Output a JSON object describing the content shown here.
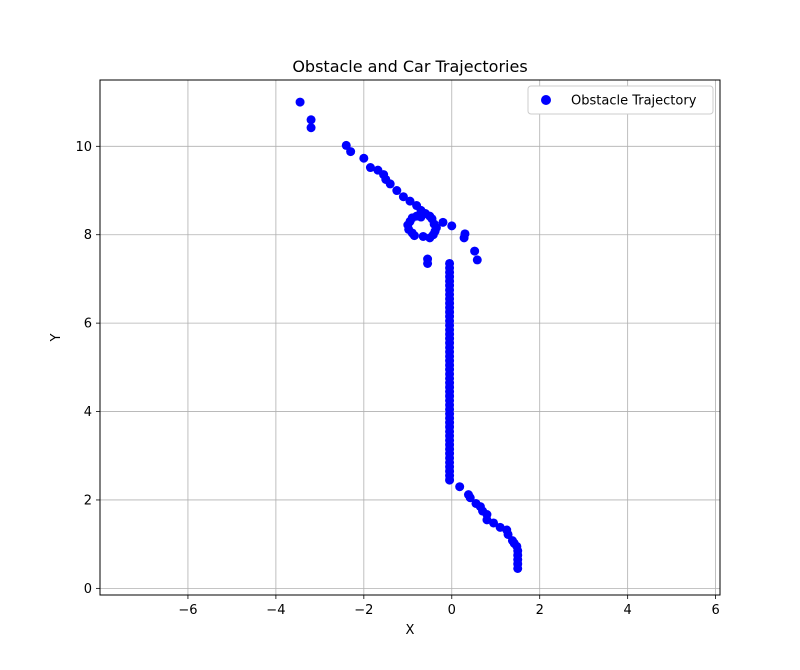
{
  "chart_data": {
    "type": "scatter",
    "title": "Obstacle and Car Trajectories",
    "xlabel": "X",
    "ylabel": "Y",
    "xlim": [
      -8.0,
      6.1
    ],
    "ylim": [
      -0.15,
      11.5
    ],
    "xticks": [
      -6,
      -4,
      -2,
      0,
      2,
      4,
      6
    ],
    "yticks": [
      0,
      2,
      4,
      6,
      8,
      10
    ],
    "xtick_labels": [
      "−6",
      "−4",
      "−2",
      "0",
      "2",
      "4",
      "6"
    ],
    "ytick_labels": [
      "0",
      "2",
      "4",
      "6",
      "8",
      "10"
    ],
    "grid": true,
    "legend_position": "top-right",
    "series": [
      {
        "name": "Obstacle Trajectory",
        "color": "#0000ff",
        "marker": "circle",
        "points": [
          [
            -3.45,
            11.0
          ],
          [
            -3.2,
            10.6
          ],
          [
            -3.2,
            10.42
          ],
          [
            -2.4,
            10.02
          ],
          [
            -2.3,
            9.88
          ],
          [
            -2.0,
            9.73
          ],
          [
            -1.85,
            9.52
          ],
          [
            -1.68,
            9.46
          ],
          [
            -1.55,
            9.36
          ],
          [
            -1.5,
            9.25
          ],
          [
            -1.4,
            9.15
          ],
          [
            -1.25,
            9.0
          ],
          [
            -1.1,
            8.86
          ],
          [
            -0.95,
            8.76
          ],
          [
            -0.8,
            8.66
          ],
          [
            -0.7,
            8.55
          ],
          [
            -0.6,
            8.48
          ],
          [
            -0.5,
            8.42
          ],
          [
            -0.45,
            8.36
          ],
          [
            -0.7,
            8.4
          ],
          [
            -0.8,
            8.42
          ],
          [
            -0.9,
            8.38
          ],
          [
            -0.95,
            8.3
          ],
          [
            -1.0,
            8.22
          ],
          [
            -0.98,
            8.12
          ],
          [
            -0.9,
            8.04
          ],
          [
            -0.85,
            7.98
          ],
          [
            -0.65,
            7.96
          ],
          [
            -0.5,
            7.93
          ],
          [
            -0.42,
            8.0
          ],
          [
            -0.38,
            8.08
          ],
          [
            -0.35,
            8.16
          ],
          [
            -0.4,
            8.24
          ],
          [
            -0.2,
            8.28
          ],
          [
            0.0,
            8.2
          ],
          [
            0.3,
            8.02
          ],
          [
            0.28,
            7.93
          ],
          [
            0.52,
            7.63
          ],
          [
            0.58,
            7.43
          ],
          [
            -0.55,
            7.45
          ],
          [
            -0.55,
            7.35
          ],
          [
            -0.05,
            7.35
          ],
          [
            -0.05,
            7.25
          ],
          [
            -0.05,
            7.15
          ],
          [
            -0.05,
            7.05
          ],
          [
            -0.05,
            6.95
          ],
          [
            -0.05,
            6.85
          ],
          [
            -0.05,
            6.75
          ],
          [
            -0.05,
            6.65
          ],
          [
            -0.05,
            6.55
          ],
          [
            -0.05,
            6.45
          ],
          [
            -0.05,
            6.35
          ],
          [
            -0.05,
            6.25
          ],
          [
            -0.05,
            6.15
          ],
          [
            -0.05,
            6.05
          ],
          [
            -0.05,
            5.95
          ],
          [
            -0.05,
            5.85
          ],
          [
            -0.05,
            5.75
          ],
          [
            -0.05,
            5.65
          ],
          [
            -0.05,
            5.55
          ],
          [
            -0.05,
            5.45
          ],
          [
            -0.05,
            5.35
          ],
          [
            -0.05,
            5.25
          ],
          [
            -0.05,
            5.15
          ],
          [
            -0.05,
            5.05
          ],
          [
            -0.05,
            4.95
          ],
          [
            -0.05,
            4.85
          ],
          [
            -0.05,
            4.75
          ],
          [
            -0.05,
            4.65
          ],
          [
            -0.05,
            4.55
          ],
          [
            -0.05,
            4.45
          ],
          [
            -0.05,
            4.35
          ],
          [
            -0.05,
            4.25
          ],
          [
            -0.05,
            4.15
          ],
          [
            -0.05,
            4.05
          ],
          [
            -0.05,
            3.95
          ],
          [
            -0.05,
            3.85
          ],
          [
            -0.05,
            3.75
          ],
          [
            -0.05,
            3.65
          ],
          [
            -0.05,
            3.55
          ],
          [
            -0.05,
            3.45
          ],
          [
            -0.05,
            3.35
          ],
          [
            -0.05,
            3.25
          ],
          [
            -0.05,
            3.15
          ],
          [
            -0.05,
            3.05
          ],
          [
            -0.05,
            2.95
          ],
          [
            -0.05,
            2.85
          ],
          [
            -0.05,
            2.75
          ],
          [
            -0.05,
            2.65
          ],
          [
            -0.05,
            2.55
          ],
          [
            -0.05,
            2.45
          ],
          [
            0.18,
            2.3
          ],
          [
            0.38,
            2.12
          ],
          [
            0.42,
            2.05
          ],
          [
            0.55,
            1.92
          ],
          [
            0.65,
            1.85
          ],
          [
            0.7,
            1.75
          ],
          [
            0.8,
            1.67
          ],
          [
            0.8,
            1.55
          ],
          [
            0.95,
            1.48
          ],
          [
            1.1,
            1.38
          ],
          [
            1.25,
            1.32
          ],
          [
            1.28,
            1.22
          ],
          [
            1.38,
            1.08
          ],
          [
            1.42,
            1.02
          ],
          [
            1.48,
            0.95
          ],
          [
            1.5,
            0.85
          ],
          [
            1.5,
            0.75
          ],
          [
            1.5,
            0.65
          ],
          [
            1.5,
            0.55
          ],
          [
            1.5,
            0.45
          ]
        ]
      }
    ]
  }
}
